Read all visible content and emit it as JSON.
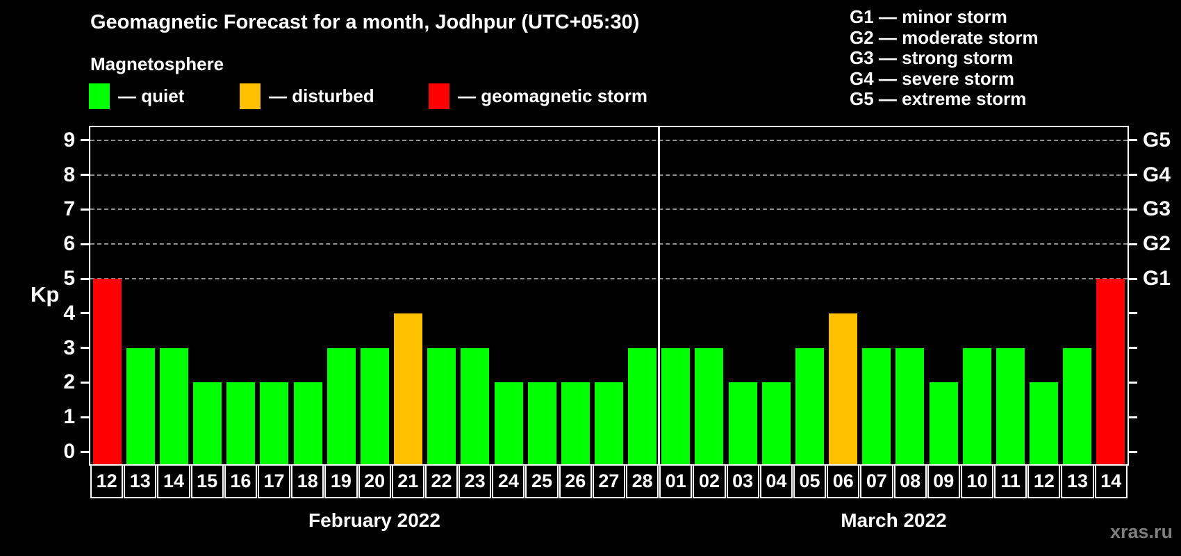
{
  "title": "Geomagnetic Forecast for a month, Jodhpur (UTC+05:30)",
  "subtitle": "Magnetosphere",
  "status_legend": [
    {
      "status": "quiet",
      "label": "— quiet",
      "color": "#00ff00"
    },
    {
      "status": "disturbed",
      "label": "— disturbed",
      "color": "#ffc000"
    },
    {
      "status": "storm",
      "label": "— geomagnetic storm",
      "color": "#ff0000"
    }
  ],
  "g_scale_legend": [
    {
      "code": "G1",
      "label": "G1 — minor storm",
      "kp": 5
    },
    {
      "code": "G2",
      "label": "G2 — moderate storm",
      "kp": 6
    },
    {
      "code": "G3",
      "label": "G3 — strong storm",
      "kp": 7
    },
    {
      "code": "G4",
      "label": "G4 — severe storm",
      "kp": 8
    },
    {
      "code": "G5",
      "label": "G5 — extreme storm",
      "kp": 9
    }
  ],
  "chart_data": {
    "type": "bar",
    "ylabel": "Kp",
    "ylim": [
      0,
      9
    ],
    "yticks": [
      0,
      1,
      2,
      3,
      4,
      5,
      6,
      7,
      8,
      9
    ],
    "grid": "horizontal dashed lines at Kp 5 through 9",
    "legend_position": "top",
    "right_axis": [
      {
        "kp": 5,
        "label": "G1"
      },
      {
        "kp": 6,
        "label": "G2"
      },
      {
        "kp": 7,
        "label": "G3"
      },
      {
        "kp": 8,
        "label": "G4"
      },
      {
        "kp": 9,
        "label": "G5"
      }
    ],
    "months": [
      {
        "label": "February 2022",
        "bars": [
          {
            "day": "12",
            "kp": 5,
            "status": "storm"
          },
          {
            "day": "13",
            "kp": 3,
            "status": "quiet"
          },
          {
            "day": "14",
            "kp": 3,
            "status": "quiet"
          },
          {
            "day": "15",
            "kp": 2,
            "status": "quiet"
          },
          {
            "day": "16",
            "kp": 2,
            "status": "quiet"
          },
          {
            "day": "17",
            "kp": 2,
            "status": "quiet"
          },
          {
            "day": "18",
            "kp": 2,
            "status": "quiet"
          },
          {
            "day": "19",
            "kp": 3,
            "status": "quiet"
          },
          {
            "day": "20",
            "kp": 3,
            "status": "quiet"
          },
          {
            "day": "21",
            "kp": 4,
            "status": "disturbed"
          },
          {
            "day": "22",
            "kp": 3,
            "status": "quiet"
          },
          {
            "day": "23",
            "kp": 3,
            "status": "quiet"
          },
          {
            "day": "24",
            "kp": 2,
            "status": "quiet"
          },
          {
            "day": "25",
            "kp": 2,
            "status": "quiet"
          },
          {
            "day": "26",
            "kp": 2,
            "status": "quiet"
          },
          {
            "day": "27",
            "kp": 2,
            "status": "quiet"
          },
          {
            "day": "28",
            "kp": 3,
            "status": "quiet"
          }
        ]
      },
      {
        "label": "March 2022",
        "bars": [
          {
            "day": "01",
            "kp": 3,
            "status": "quiet"
          },
          {
            "day": "02",
            "kp": 3,
            "status": "quiet"
          },
          {
            "day": "03",
            "kp": 2,
            "status": "quiet"
          },
          {
            "day": "04",
            "kp": 2,
            "status": "quiet"
          },
          {
            "day": "05",
            "kp": 3,
            "status": "quiet"
          },
          {
            "day": "06",
            "kp": 4,
            "status": "disturbed"
          },
          {
            "day": "07",
            "kp": 3,
            "status": "quiet"
          },
          {
            "day": "08",
            "kp": 3,
            "status": "quiet"
          },
          {
            "day": "09",
            "kp": 2,
            "status": "quiet"
          },
          {
            "day": "10",
            "kp": 3,
            "status": "quiet"
          },
          {
            "day": "11",
            "kp": 3,
            "status": "quiet"
          },
          {
            "day": "12",
            "kp": 2,
            "status": "quiet"
          },
          {
            "day": "13",
            "kp": 3,
            "status": "quiet"
          },
          {
            "day": "14",
            "kp": 5,
            "status": "storm"
          }
        ]
      }
    ]
  },
  "colors": {
    "background": "#000000",
    "quiet": "#00ff00",
    "disturbed": "#ffc000",
    "storm": "#ff0000",
    "axis": "#ffffff",
    "grid": "#909090",
    "watermark": "#7f7f7f"
  },
  "watermark": "xras.ru"
}
